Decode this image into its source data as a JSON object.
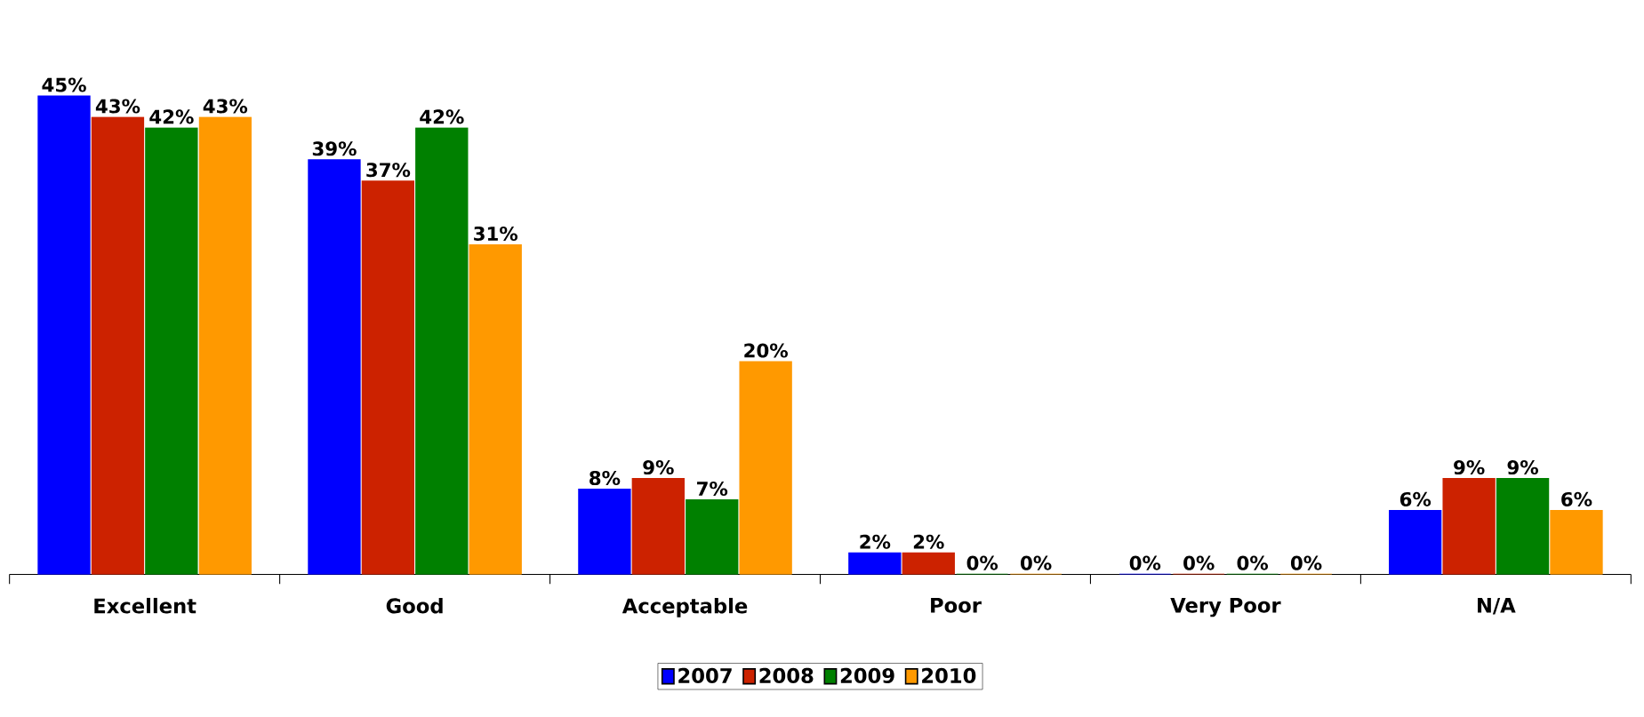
{
  "chart_data": {
    "type": "bar",
    "categories": [
      "Excellent",
      "Good",
      "Acceptable",
      "Poor",
      "Very Poor",
      "N/A"
    ],
    "series": [
      {
        "name": "2007",
        "color": "#0000ff",
        "values": [
          45,
          39,
          8,
          2,
          0,
          6
        ],
        "value_labels": [
          "45%",
          "39%",
          "8%",
          "2%",
          "0%",
          "6%"
        ]
      },
      {
        "name": "2008",
        "color": "#cc2200",
        "values": [
          43,
          37,
          9,
          2,
          0,
          9
        ],
        "value_labels": [
          "43%",
          "37%",
          "9%",
          "2%",
          "0%",
          "9%"
        ]
      },
      {
        "name": "2009",
        "color": "#008000",
        "values": [
          42,
          42,
          7,
          0,
          0,
          9
        ],
        "value_labels": [
          "42%",
          "42%",
          "7%",
          "0%",
          "0%",
          "9%"
        ]
      },
      {
        "name": "2010",
        "color": "#ff9900",
        "values": [
          43,
          31,
          20,
          0,
          0,
          6
        ],
        "value_labels": [
          "43%",
          "31%",
          "20%",
          "0%",
          "0%",
          "6%"
        ]
      }
    ],
    "legend": "bottom",
    "grid": false
  }
}
